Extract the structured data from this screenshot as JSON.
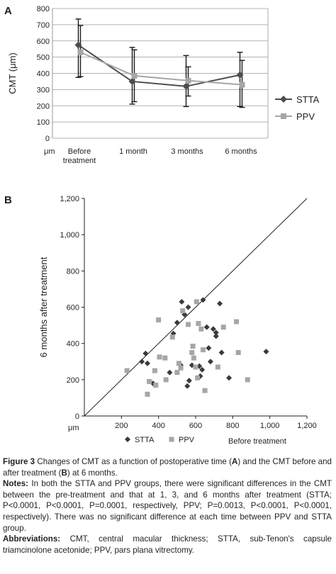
{
  "chart_data": [
    {
      "type": "line",
      "panel_label": "A",
      "title": "",
      "xlabel": "μm",
      "ylabel": "CMT (μm)",
      "categories": [
        "Before treatment",
        "1 month",
        "3 months",
        "6 months"
      ],
      "category_lines": [
        [
          "Before",
          "treatment"
        ],
        [
          "1 month"
        ],
        [
          "3 months"
        ],
        [
          "6 months"
        ]
      ],
      "ylim": [
        0,
        800
      ],
      "yticks": [
        0,
        100,
        200,
        300,
        400,
        500,
        600,
        700,
        800
      ],
      "grid": "horizontal",
      "legend": "right",
      "series": [
        {
          "name": "STTA",
          "marker": "diamond",
          "color": "#4d4d4d",
          "values": [
            575,
            350,
            320,
            390
          ],
          "err_upper": [
            735,
            560,
            510,
            530
          ],
          "err_lower": [
            375,
            210,
            195,
            195
          ]
        },
        {
          "name": "PPV",
          "marker": "square",
          "color": "#a6a6a6",
          "values": [
            530,
            385,
            355,
            330
          ],
          "err_upper": [
            695,
            545,
            440,
            480
          ],
          "err_lower": [
            380,
            225,
            260,
            190
          ]
        }
      ]
    },
    {
      "type": "scatter",
      "panel_label": "B",
      "title": "",
      "xlabel": "Before treatment",
      "ylabel": "6 months after treatment",
      "corner_label": "μm",
      "xlim": [
        0,
        1200
      ],
      "ylim": [
        0,
        1200
      ],
      "xticks": [
        200,
        400,
        600,
        800,
        "1,000",
        "1,200"
      ],
      "yticks": [
        0,
        200,
        400,
        600,
        800,
        "1,000",
        "1,200"
      ],
      "reference_line": "y = x",
      "legend": "bottom",
      "series": [
        {
          "name": "STTA",
          "marker": "diamond",
          "color": "#3a3a3a",
          "points": [
            [
              310,
              300
            ],
            [
              330,
              345
            ],
            [
              340,
              290
            ],
            [
              370,
              180
            ],
            [
              460,
              240
            ],
            [
              480,
              455
            ],
            [
              500,
              515
            ],
            [
              520,
              280
            ],
            [
              525,
              630
            ],
            [
              540,
              560
            ],
            [
              555,
              165
            ],
            [
              560,
              600
            ],
            [
              565,
              195
            ],
            [
              580,
              280
            ],
            [
              620,
              275
            ],
            [
              625,
              220
            ],
            [
              635,
              255
            ],
            [
              640,
              640
            ],
            [
              660,
              490
            ],
            [
              670,
              375
            ],
            [
              680,
              300
            ],
            [
              695,
              480
            ],
            [
              710,
              460
            ],
            [
              710,
              440
            ],
            [
              730,
              620
            ],
            [
              740,
              350
            ],
            [
              780,
              210
            ],
            [
              980,
              355
            ]
          ]
        },
        {
          "name": "PPV",
          "marker": "square",
          "color": "#a6a6a6",
          "points": [
            [
              230,
              250
            ],
            [
              340,
              120
            ],
            [
              350,
              190
            ],
            [
              380,
              250
            ],
            [
              385,
              170
            ],
            [
              400,
              530
            ],
            [
              405,
              325
            ],
            [
              435,
              320
            ],
            [
              440,
              200
            ],
            [
              475,
              435
            ],
            [
              500,
              240
            ],
            [
              510,
              290
            ],
            [
              520,
              265
            ],
            [
              530,
              580
            ],
            [
              560,
              505
            ],
            [
              580,
              350
            ],
            [
              585,
              385
            ],
            [
              590,
              320
            ],
            [
              600,
              270
            ],
            [
              605,
              630
            ],
            [
              610,
              210
            ],
            [
              615,
              510
            ],
            [
              630,
              480
            ],
            [
              640,
              365
            ],
            [
              650,
              140
            ],
            [
              720,
              270
            ],
            [
              750,
              490
            ],
            [
              820,
              520
            ],
            [
              830,
              350
            ],
            [
              880,
              200
            ]
          ]
        }
      ]
    }
  ],
  "caption": {
    "figure_label": "Figure 3",
    "figure_text_1": " Changes of CMT as a function of postoperative time (",
    "figure_a": "A",
    "figure_text_2": ") and the CMT before and after treatment (",
    "figure_b": "B",
    "figure_text_3": ") at 6 months.",
    "notes_label": "Notes:",
    "notes_text": " In both the STTA and PPV groups, there were significant differences in the CMT between the pre-treatment and that at 1, 3, and 6 months after treatment (STTA; P<0.0001, P<0.0001, P=0.0001, respectively, PPV; P=0.0013, P<0.0001, P<0.0001, respectively). There was no significant difference at each time between PPV and STTA group.",
    "abbr_label": "Abbreviations:",
    "abbr_text": " CMT, central macular thickness; STTA, sub-Tenon's capsule triamcinolone acetonide; PPV, pars plana vitrectomy."
  }
}
